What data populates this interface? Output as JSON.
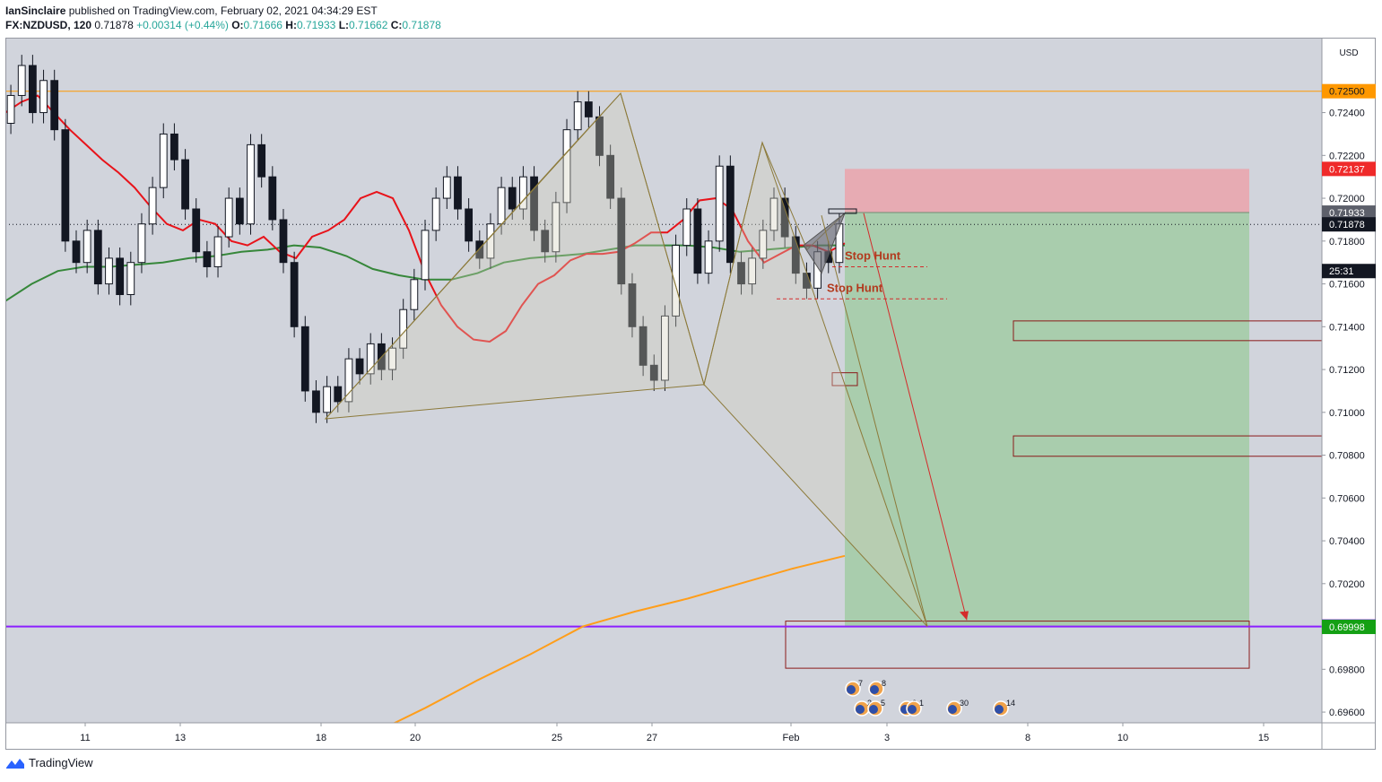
{
  "header": {
    "author": "IanSinclaire",
    "published_text": "published on TradingView.com, February 02, 2021 04:34:29 EST",
    "symbol": "FX:NZDUSD, 120",
    "last": "0.71878",
    "change": "+0.00314 (+0.44%)",
    "o_label": "O:",
    "o": "0.71666",
    "h_label": "H:",
    "h": "0.71933",
    "l_label": "L:",
    "l": "0.71662",
    "c_label": "C:",
    "c": "0.71878"
  },
  "footer": {
    "brand": "TradingView"
  },
  "colors": {
    "plot_bg": "#d1d4dc",
    "ema_fast": "#e8131a",
    "ema_slow": "#36873a",
    "ma_long": "#ff9e1b",
    "level_line": "#ff9800",
    "support_line": "#8b1fff",
    "stop_zone": "#e9a6ae",
    "target_zone": "#a6ccaa",
    "pattern": "#8c7a3a",
    "annotation": "#b23a1e"
  },
  "chart_data": {
    "type": "candlestick",
    "symbol": "NZDUSD",
    "currency": "USD",
    "timeframe": "120",
    "ylim": [
      0.6955,
      0.7275
    ],
    "y_ticks": [
      "0.72500",
      "0.72400",
      "0.72200",
      "0.72000",
      "0.71800",
      "0.71600",
      "0.71400",
      "0.71200",
      "0.71000",
      "0.70800",
      "0.70600",
      "0.70400",
      "0.70200",
      "0.70000",
      "0.69800",
      "0.69600"
    ],
    "x_ticks": [
      "11",
      "13",
      "18",
      "20",
      "25",
      "27",
      "Feb",
      "3",
      "8",
      "10",
      "15"
    ],
    "axis_badges": [
      {
        "value": "0.72500",
        "price": 0.725,
        "color": "#ff9800",
        "text_color": "#131722"
      },
      {
        "value": "0.72137",
        "price": 0.72137,
        "color": "#ef2a2a",
        "text_color": "#ffffff"
      },
      {
        "value": "0.71933",
        "price": 0.71933,
        "color": "#5d606b",
        "text_color": "#ffffff"
      },
      {
        "value": "0.71878",
        "price": 0.71878,
        "color": "#131722",
        "text_color": "#ffffff"
      },
      {
        "value": "25:31",
        "price": 0.7166,
        "color": "#131722",
        "text_color": "#ffffff"
      },
      {
        "value": "0.70000",
        "price": 0.7,
        "color": "#8b1fff",
        "text_color": "#ffffff"
      },
      {
        "value": "0.69998",
        "price": 0.69998,
        "color": "#14a014",
        "text_color": "#ffffff"
      }
    ],
    "horizontal_lines": [
      {
        "name": "resistance",
        "price": 0.725
      },
      {
        "name": "support",
        "price": 0.7
      },
      {
        "name": "last-price",
        "price": 0.71878
      }
    ],
    "position": {
      "side": "short",
      "entry": 0.71933,
      "stop": 0.72137,
      "target": 0.69998
    },
    "annotations": [
      {
        "text": "Stop Hunt",
        "price": 0.7168
      },
      {
        "text": "Stop Hunt",
        "price": 0.7153
      }
    ],
    "event_markers": [
      "7",
      "8",
      "2",
      "5",
      "6",
      "1",
      "30",
      "14"
    ],
    "series": [
      {
        "name": "",
        "kind": "candles",
        "values": [
          [
            0.7235,
            0.7248
          ],
          [
            0.7248,
            0.7262
          ],
          [
            0.7262,
            0.724
          ],
          [
            0.724,
            0.7255
          ],
          [
            0.7255,
            0.7232
          ],
          [
            0.7232,
            0.718
          ],
          [
            0.718,
            0.717
          ],
          [
            0.717,
            0.7185
          ],
          [
            0.7185,
            0.716
          ],
          [
            0.716,
            0.7172
          ],
          [
            0.7172,
            0.7155
          ],
          [
            0.7155,
            0.717
          ],
          [
            0.717,
            0.7188
          ],
          [
            0.7188,
            0.7205
          ],
          [
            0.7205,
            0.723
          ],
          [
            0.723,
            0.7218
          ],
          [
            0.7218,
            0.7195
          ],
          [
            0.7195,
            0.7175
          ],
          [
            0.7175,
            0.7168
          ],
          [
            0.7168,
            0.7182
          ],
          [
            0.7182,
            0.72
          ],
          [
            0.72,
            0.7188
          ],
          [
            0.7188,
            0.7225
          ],
          [
            0.7225,
            0.721
          ],
          [
            0.721,
            0.719
          ],
          [
            0.719,
            0.717
          ],
          [
            0.717,
            0.714
          ],
          [
            0.714,
            0.711
          ],
          [
            0.711,
            0.71
          ],
          [
            0.71,
            0.7112
          ],
          [
            0.7112,
            0.7105
          ],
          [
            0.7105,
            0.7125
          ],
          [
            0.7125,
            0.7118
          ],
          [
            0.7118,
            0.7132
          ],
          [
            0.7132,
            0.712
          ],
          [
            0.712,
            0.713
          ],
          [
            0.713,
            0.7148
          ],
          [
            0.7148,
            0.7162
          ],
          [
            0.7162,
            0.7185
          ],
          [
            0.7185,
            0.72
          ],
          [
            0.72,
            0.721
          ],
          [
            0.721,
            0.7195
          ],
          [
            0.7195,
            0.718
          ],
          [
            0.718,
            0.7172
          ],
          [
            0.7172,
            0.7188
          ],
          [
            0.7188,
            0.7205
          ],
          [
            0.7205,
            0.7195
          ],
          [
            0.7195,
            0.721
          ],
          [
            0.721,
            0.7185
          ],
          [
            0.7185,
            0.7175
          ],
          [
            0.7175,
            0.7198
          ],
          [
            0.7198,
            0.7232
          ],
          [
            0.7232,
            0.7245
          ],
          [
            0.7245,
            0.7238
          ],
          [
            0.7238,
            0.722
          ],
          [
            0.722,
            0.72
          ],
          [
            0.72,
            0.716
          ],
          [
            0.716,
            0.714
          ],
          [
            0.714,
            0.7122
          ],
          [
            0.7122,
            0.7115
          ],
          [
            0.7115,
            0.7145
          ],
          [
            0.7145,
            0.7178
          ],
          [
            0.7178,
            0.7195
          ],
          [
            0.7195,
            0.7165
          ],
          [
            0.7165,
            0.718
          ],
          [
            0.718,
            0.7215
          ],
          [
            0.7215,
            0.717
          ],
          [
            0.717,
            0.716
          ],
          [
            0.716,
            0.7172
          ],
          [
            0.7172,
            0.7185
          ],
          [
            0.7185,
            0.72
          ],
          [
            0.72,
            0.7182
          ],
          [
            0.7182,
            0.7165
          ],
          [
            0.7165,
            0.7158
          ],
          [
            0.7158,
            0.7175
          ],
          [
            0.7175,
            0.717
          ],
          [
            0.717,
            0.7188
          ]
        ]
      },
      {
        "name": "",
        "kind": "ema_fast",
        "values": [
          0.724,
          0.7245,
          0.7248,
          0.724,
          0.7232,
          0.7225,
          0.7218,
          0.7212,
          0.7205,
          0.7196,
          0.7188,
          0.7185,
          0.719,
          0.7188,
          0.718,
          0.7178,
          0.7182,
          0.7175,
          0.7172,
          0.7182,
          0.7185,
          0.719,
          0.72,
          0.7203,
          0.72,
          0.7185,
          0.7165,
          0.715,
          0.714,
          0.7134,
          0.7133,
          0.7138,
          0.715,
          0.716,
          0.7164,
          0.7171,
          0.7174,
          0.7174,
          0.7175,
          0.7179,
          0.7184,
          0.7184,
          0.719,
          0.7199,
          0.72,
          0.7195,
          0.718,
          0.717,
          0.7174,
          0.7178,
          0.7178,
          0.7175,
          0.7179
        ]
      },
      {
        "name": "",
        "kind": "ema_slow",
        "values": [
          0.7152,
          0.716,
          0.7166,
          0.7168,
          0.7168,
          0.7169,
          0.717,
          0.7172,
          0.7173,
          0.7175,
          0.7176,
          0.7178,
          0.7177,
          0.7173,
          0.7167,
          0.7164,
          0.7162,
          0.7162,
          0.7165,
          0.717,
          0.7172,
          0.7173,
          0.7174,
          0.7176,
          0.7178,
          0.7178,
          0.7178,
          0.7177,
          0.7175,
          0.7176,
          0.7177,
          0.7178,
          0.7178
        ]
      },
      {
        "name": "",
        "kind": "ma_long",
        "values": [
          0.695,
          0.6962,
          0.6975,
          0.6987,
          0.7,
          0.7007,
          0.7013,
          0.702,
          0.7027,
          0.7033
        ]
      }
    ]
  }
}
